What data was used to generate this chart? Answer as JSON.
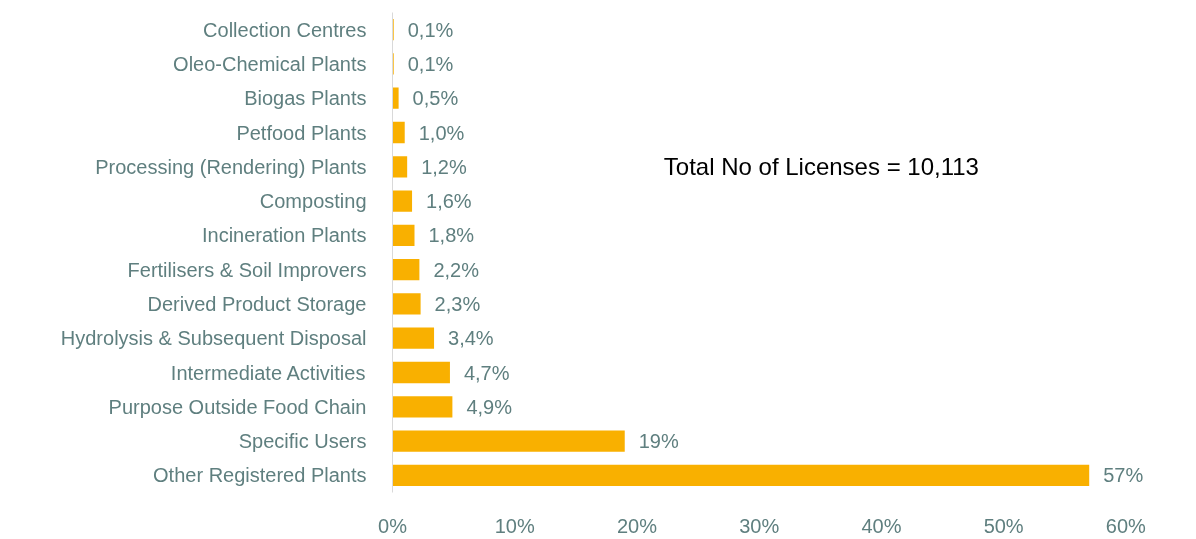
{
  "chart_data": {
    "type": "bar",
    "orientation": "horizontal",
    "categories": [
      "Collection Centres",
      "Oleo-Chemical Plants",
      "Biogas Plants",
      "Petfood Plants",
      "Processing (Rendering) Plants",
      "Composting",
      "Incineration Plants",
      "Fertilisers & Soil Improvers",
      "Derived Product Storage",
      "Hydrolysis & Subsequent Disposal",
      "Intermediate Activities",
      "Purpose Outside Food Chain",
      "Specific Users",
      "Other Registered Plants"
    ],
    "values": [
      0.1,
      0.1,
      0.5,
      1.0,
      1.2,
      1.6,
      1.8,
      2.2,
      2.3,
      3.4,
      4.7,
      4.9,
      19,
      57
    ],
    "value_labels": [
      "0,1%",
      "0,1%",
      "0,5%",
      "1,0%",
      "1,2%",
      "1,6%",
      "1,8%",
      "2,2%",
      "2,3%",
      "3,4%",
      "4,7%",
      "4,9%",
      "19%",
      "57%"
    ],
    "color": "#f9b000",
    "xlim": [
      0,
      60
    ],
    "xticks": [
      {
        "value": 0,
        "label": "0%"
      },
      {
        "value": 10,
        "label": "10%"
      },
      {
        "value": 20,
        "label": "20%"
      },
      {
        "value": 30,
        "label": "30%"
      },
      {
        "value": 40,
        "label": "40%"
      },
      {
        "value": 50,
        "label": "50%"
      },
      {
        "value": 60,
        "label": "60%"
      }
    ],
    "annotations": [
      "Total No of Licenses = 10,113"
    ],
    "grid": false
  }
}
